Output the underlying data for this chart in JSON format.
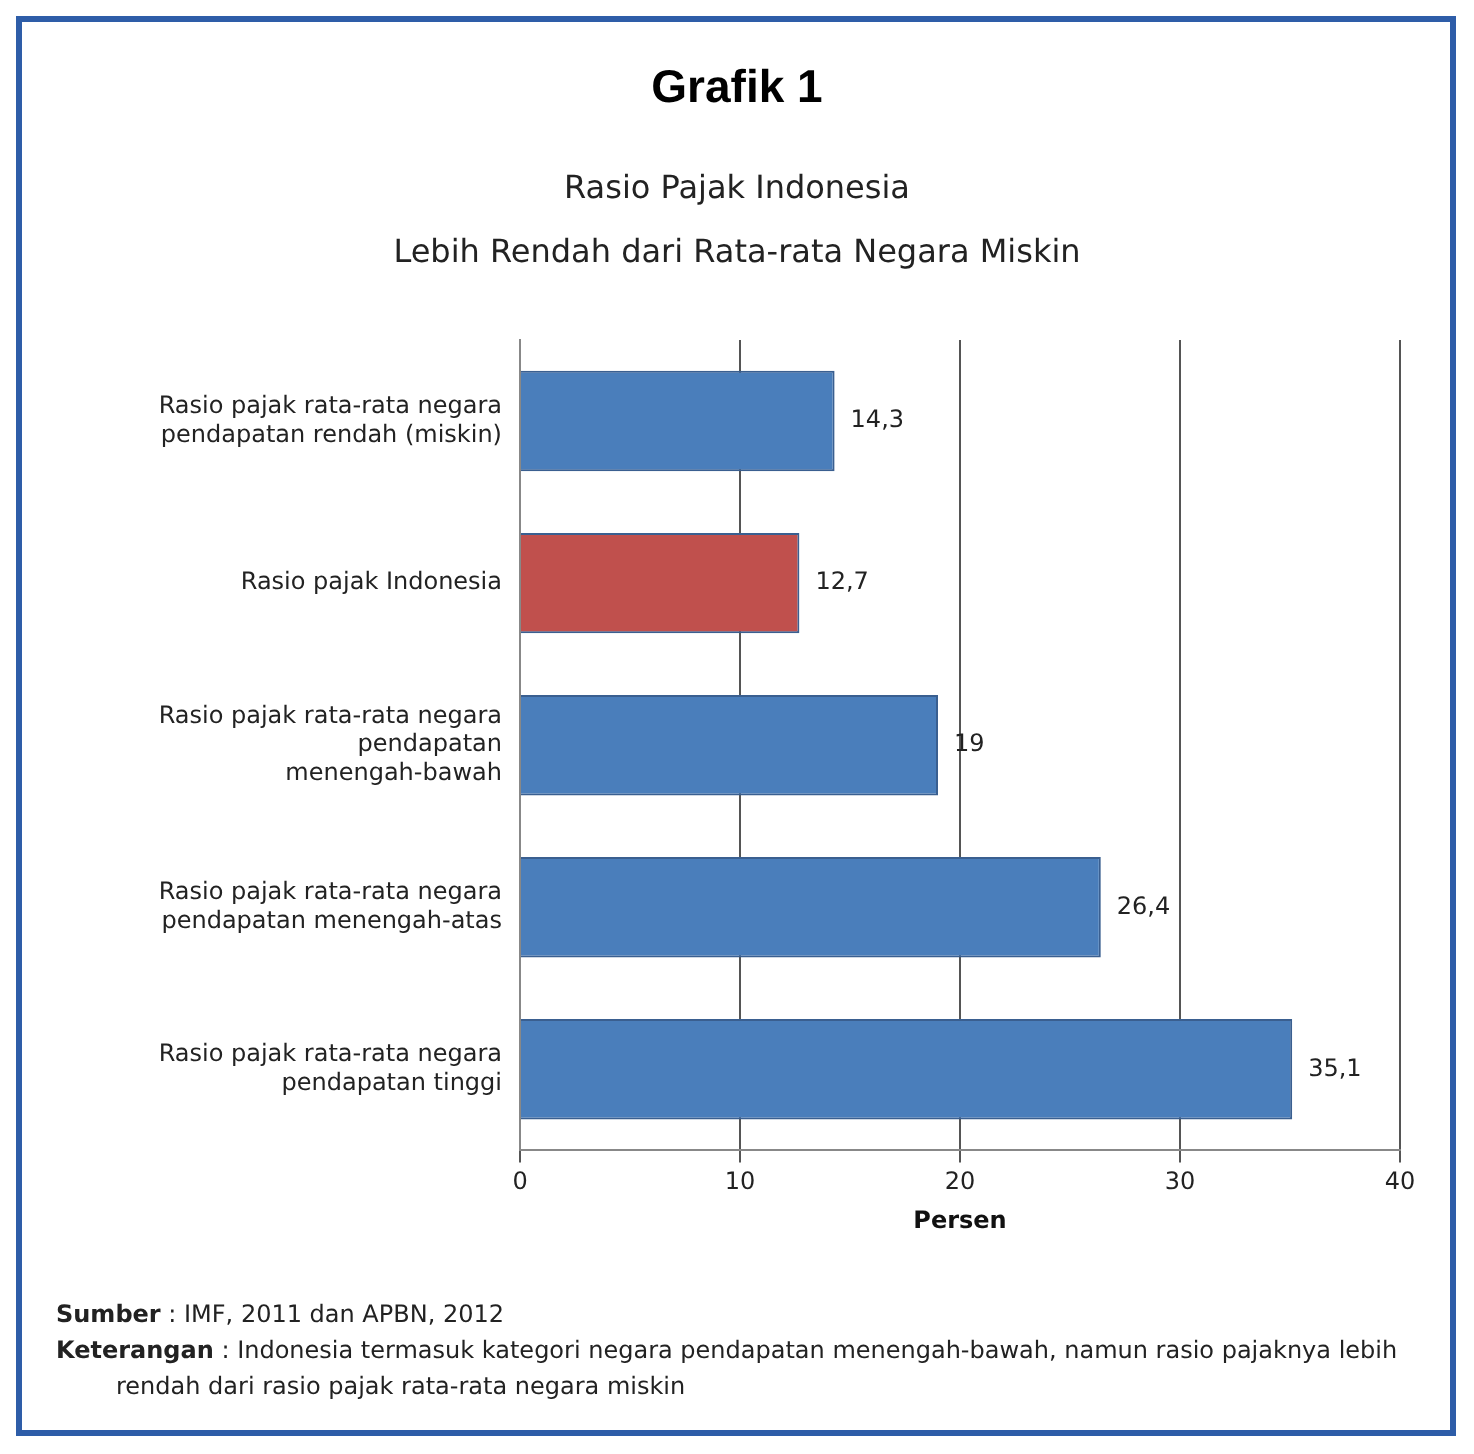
{
  "chart_data": {
    "type": "bar",
    "orientation": "horizontal",
    "title": "Grafik 1",
    "subtitle": "Rasio Pajak Indonesia\nLebih Rendah dari Rata-rata  Negara Miskin",
    "categories": [
      "Rasio pajak rata-rata negara pendapatan rendah (miskin)",
      "Rasio pajak Indonesia",
      "Rasio pajak rata-rata negara pendapatan menengah-bawah",
      "Rasio pajak rata-rata negara pendapatan menengah-atas",
      "Rasio pajak rata-rata negara pendapatan tinggi"
    ],
    "values": [
      14.3,
      12.7,
      19,
      26.4,
      35.1
    ],
    "colors": [
      "#4a7ebb",
      "#c0504d",
      "#4a7ebb",
      "#4a7ebb",
      "#4a7ebb"
    ],
    "value_labels": [
      "14,3",
      "12,7",
      "19",
      "26,4",
      "35,1"
    ],
    "xlim": [
      0,
      40
    ],
    "xticks": [
      0,
      10,
      20,
      30,
      40
    ],
    "xlabel": "Persen",
    "grid": "x",
    "legend": false,
    "annotations": [
      "Sumber : IMF, 2011 dan APBN, 2012",
      "Keterangan : Indonesia termasuk kategori negara pendapatan menengah-bawah, namun rasio pajaknya lebih rendah dari rasio pajak rata-rata  negara miskin"
    ]
  }
}
